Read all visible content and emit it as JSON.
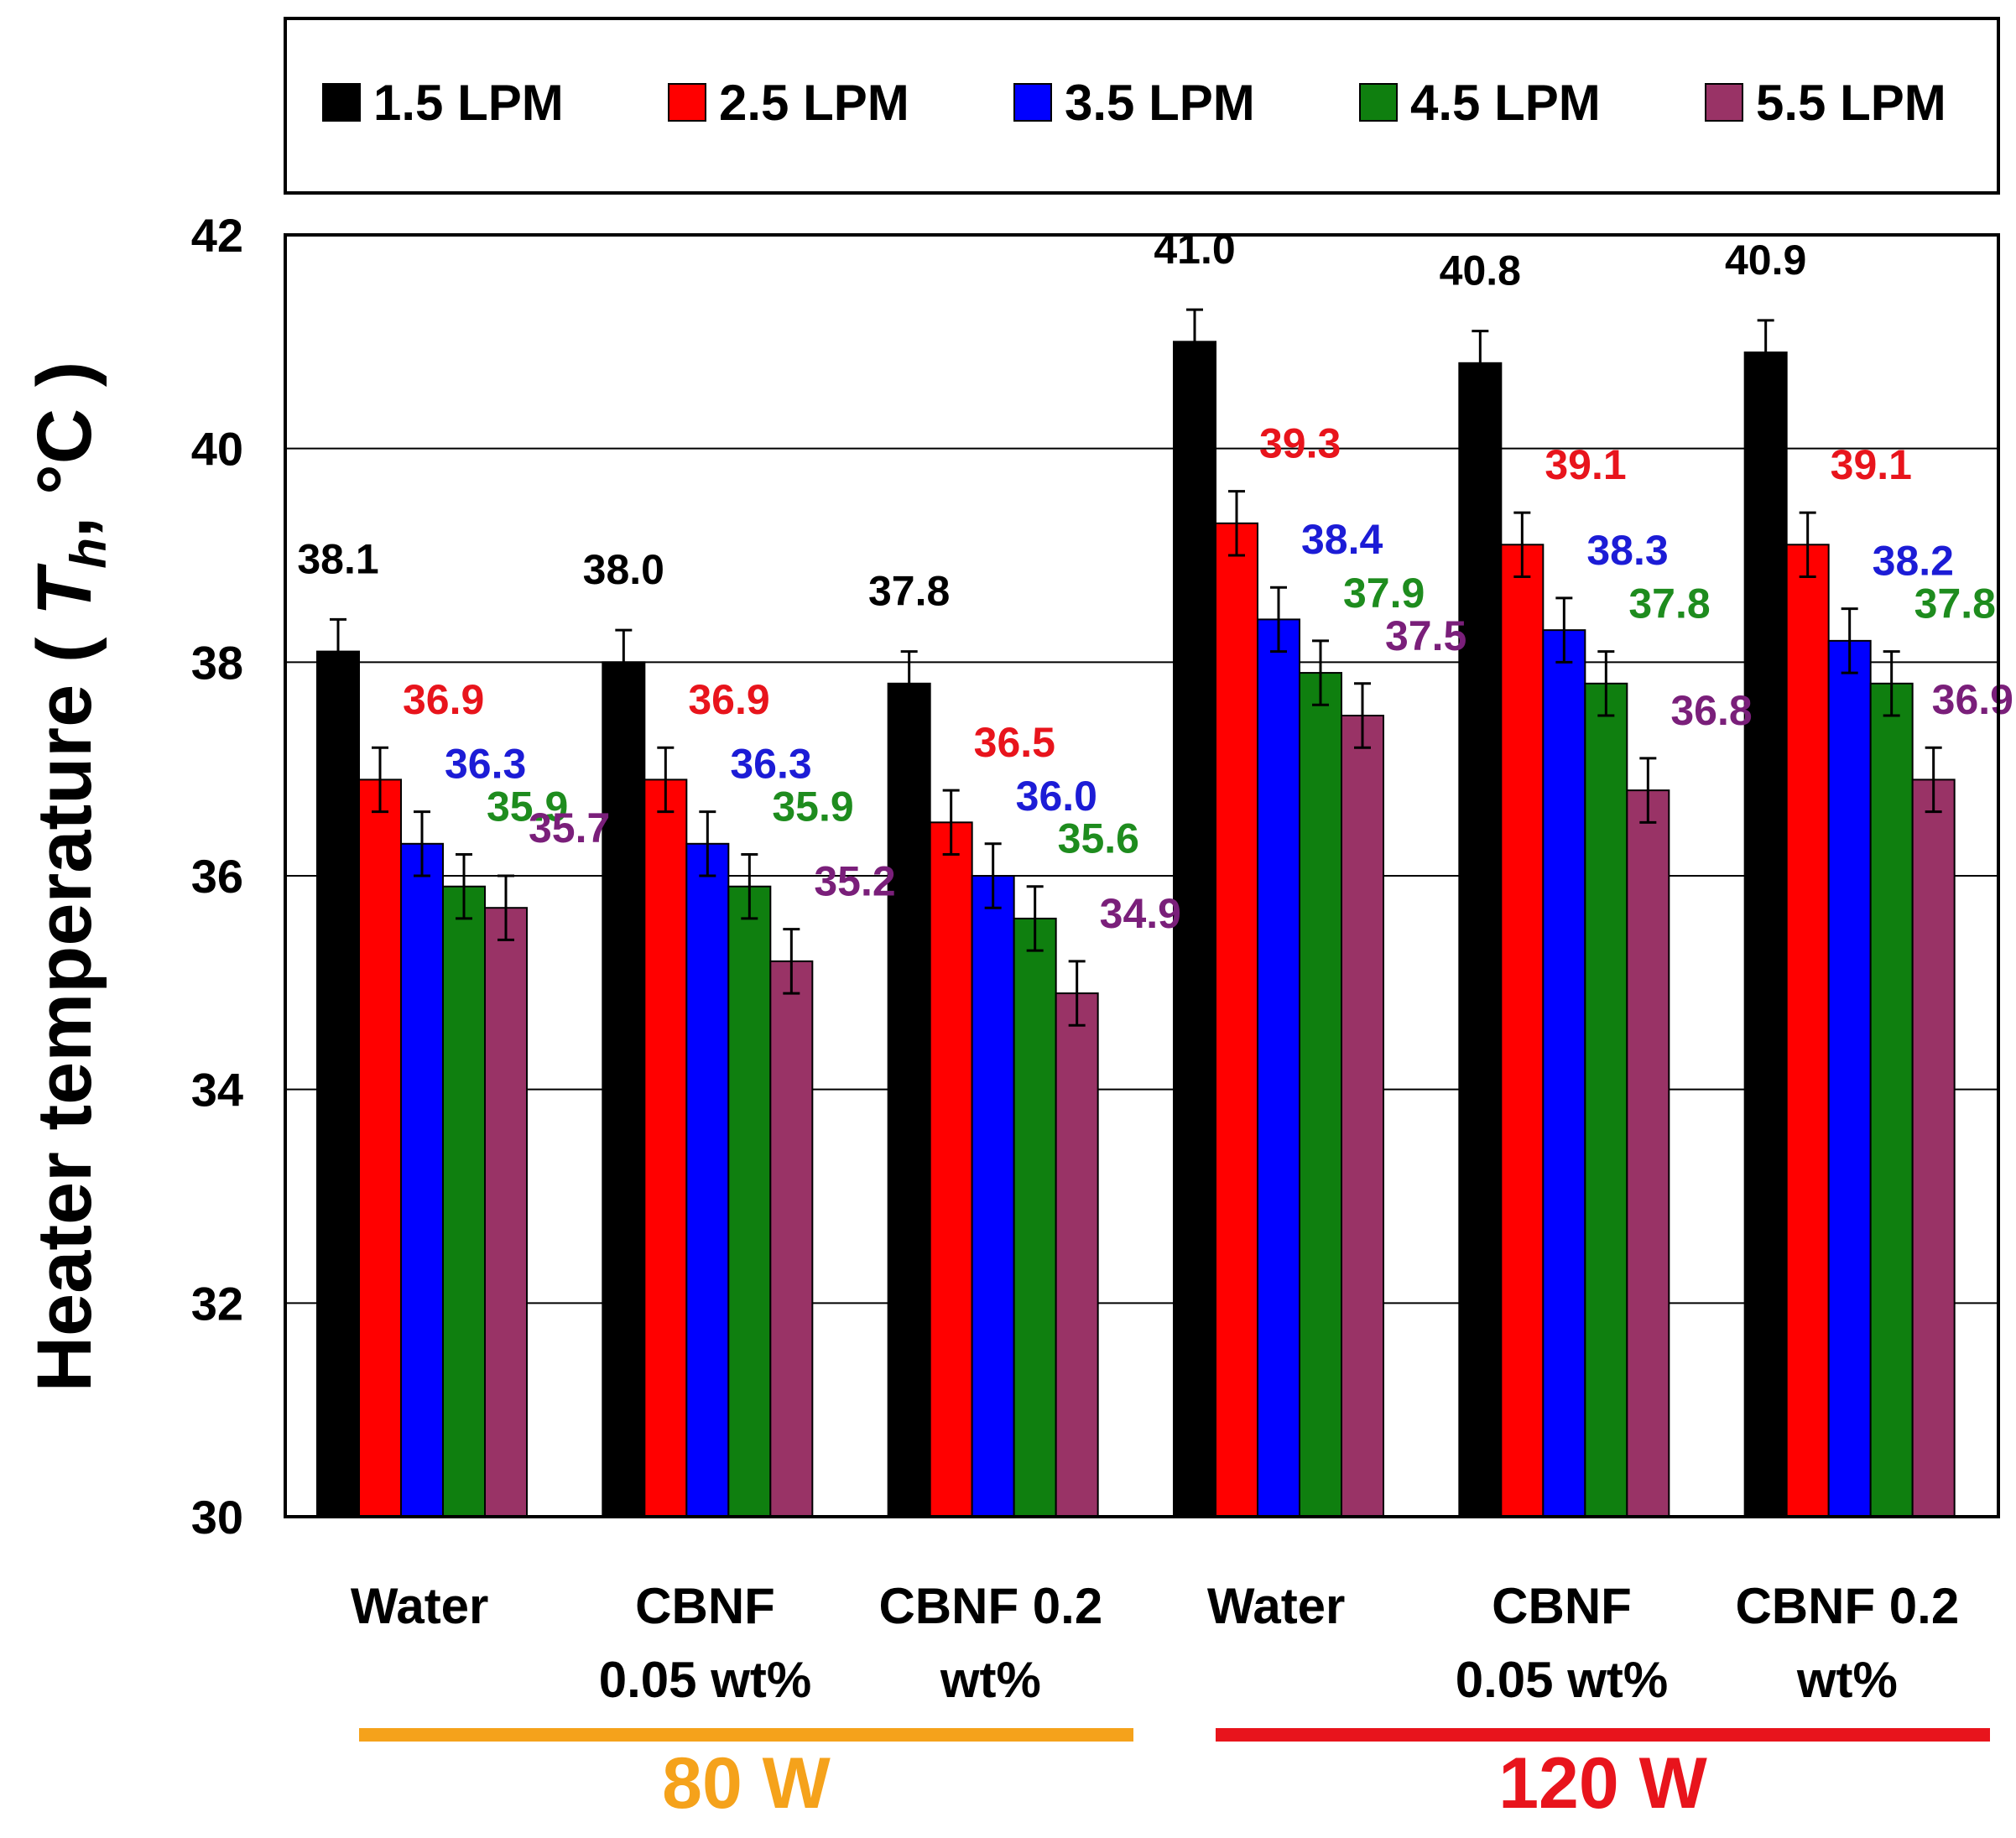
{
  "chart_data": {
    "type": "bar",
    "title": "",
    "ylabel_prefix": "Heater temperature ( ",
    "ylabel_symbol": "T",
    "ylabel_subscript": "h",
    "ylabel_suffix": ", °C )",
    "xlabel": "",
    "ylim": [
      30,
      42
    ],
    "yticks": [
      "30",
      "32",
      "34",
      "36",
      "38",
      "40",
      "42"
    ],
    "grid": true,
    "legend_position": "top",
    "categories": [
      [
        "Water"
      ],
      [
        "CBNF",
        "0.05 wt%"
      ],
      [
        "CBNF 0.2",
        "wt%"
      ],
      [
        "Water"
      ],
      [
        "CBNF",
        "0.05 wt%"
      ],
      [
        "CBNF 0.2",
        "wt%"
      ]
    ],
    "groups": [
      {
        "label": "80 W",
        "color": "#f5a21b",
        "start": 0,
        "end": 2
      },
      {
        "label": "120 W",
        "color": "#e8141c",
        "start": 3,
        "end": 5
      }
    ],
    "series": [
      {
        "name": "1.5 LPM",
        "color": "#000000",
        "label_color": "#000000",
        "values": [
          38.1,
          38.0,
          37.8,
          41.0,
          40.8,
          40.9
        ],
        "labels": [
          "38.1",
          "38.0",
          "37.8",
          "41.0",
          "40.8",
          "40.9"
        ]
      },
      {
        "name": "2.5 LPM",
        "color": "#ff0000",
        "label_color": "#e8141c",
        "values": [
          36.9,
          36.9,
          36.5,
          39.3,
          39.1,
          39.1
        ],
        "labels": [
          "36.9",
          "36.9",
          "36.5",
          "39.3",
          "39.1",
          "39.1"
        ]
      },
      {
        "name": "3.5 LPM",
        "color": "#0000ff",
        "label_color": "#1c1cd6",
        "values": [
          36.3,
          36.3,
          36.0,
          38.4,
          38.3,
          38.2
        ],
        "labels": [
          "36.3",
          "36.3",
          "36.0",
          "38.4",
          "38.3",
          "38.2"
        ]
      },
      {
        "name": "4.5 LPM",
        "color": "#0f7f0f",
        "label_color": "#1e8c1e",
        "values": [
          35.9,
          35.9,
          35.6,
          37.9,
          37.8,
          37.8
        ],
        "labels": [
          "35.9",
          "35.9",
          "35.6",
          "37.9",
          "37.8",
          "37.8"
        ]
      },
      {
        "name": "5.5 LPM",
        "color": "#993366",
        "label_color": "#7a1f7a",
        "values": [
          35.7,
          35.2,
          34.9,
          37.5,
          36.8,
          36.9
        ],
        "labels": [
          "35.7",
          "35.2",
          "34.9",
          "37.5",
          "36.8",
          "36.9"
        ]
      }
    ],
    "error": 0.3
  }
}
